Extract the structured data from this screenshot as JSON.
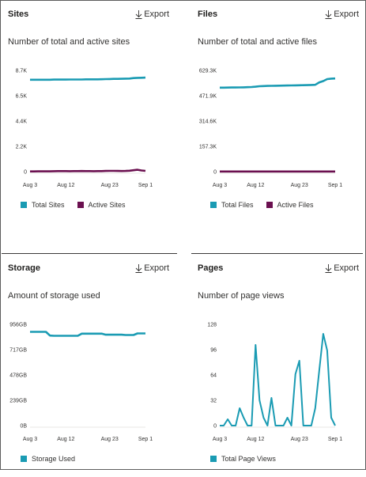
{
  "colors": {
    "total": "#1a9bb3",
    "active": "#6b1050",
    "text": "#323130"
  },
  "panels": [
    {
      "key": "sites",
      "title": "Sites",
      "export_label": "Export",
      "export_icon": "download-icon",
      "subtitle": "Number of total and active sites",
      "chart_data": {
        "type": "line",
        "y_ticks": [
          "8.7K",
          "6.5K",
          "4.4K",
          "2.2K",
          "0"
        ],
        "ylim": [
          0,
          8700
        ],
        "x_ticks": [
          "Aug 3",
          "Aug 12",
          "Aug 23",
          "Sep 1"
        ],
        "x_tick_days": [
          0,
          9,
          20,
          29
        ],
        "x_days": 30,
        "series": [
          {
            "name": "Total Sites",
            "values": [
              7900,
              7900,
              7900,
              7900,
              7900,
              7900,
              7910,
              7910,
              7910,
              7910,
              7920,
              7920,
              7920,
              7920,
              7930,
              7930,
              7930,
              7930,
              7940,
              7950,
              7960,
              7970,
              7970,
              7980,
              7990,
              8000,
              8040,
              8060,
              8070,
              8080
            ]
          },
          {
            "name": "Active Sites",
            "values": [
              20,
              20,
              25,
              30,
              35,
              30,
              40,
              45,
              50,
              45,
              40,
              45,
              50,
              55,
              50,
              45,
              40,
              45,
              50,
              60,
              70,
              65,
              60,
              55,
              60,
              80,
              120,
              160,
              100,
              70
            ]
          }
        ]
      }
    },
    {
      "key": "files",
      "title": "Files",
      "export_label": "Export",
      "export_icon": "download-icon",
      "subtitle": "Number of total and active files",
      "chart_data": {
        "type": "line",
        "y_ticks": [
          "629.3K",
          "471.9K",
          "314.6K",
          "157.3K",
          "0"
        ],
        "ylim": [
          0,
          629300
        ],
        "x_ticks": [
          "Aug 3",
          "Aug 12",
          "Aug 23",
          "Sep 1"
        ],
        "x_tick_days": [
          0,
          9,
          20,
          29
        ],
        "x_days": 30,
        "series": [
          {
            "name": "Total Files",
            "values": [
              522000,
              522000,
              522500,
              523000,
              523000,
              523500,
              524000,
              525000,
              526000,
              528000,
              531000,
              532000,
              533000,
              533500,
              534000,
              534500,
              535000,
              535500,
              536000,
              536500,
              537000,
              537500,
              538000,
              539000,
              540000,
              555000,
              563000,
              575000,
              578000,
              579000
            ]
          },
          {
            "name": "Active Files",
            "values": [
              800,
              800,
              900,
              1000,
              900,
              800,
              900,
              1000,
              1100,
              900,
              800,
              900,
              1000,
              900,
              800,
              900,
              1000,
              900,
              800,
              900,
              1000,
              900,
              800,
              900,
              1000,
              900,
              800,
              900,
              1000,
              900
            ]
          }
        ]
      }
    },
    {
      "key": "storage",
      "title": "Storage",
      "export_label": "Export",
      "export_icon": "download-icon",
      "subtitle": "Amount of storage used",
      "chart_data": {
        "type": "line",
        "y_ticks": [
          "956GB",
          "717GB",
          "478GB",
          "239GB",
          "0B"
        ],
        "ylim": [
          0,
          956
        ],
        "x_ticks": [
          "Aug 3",
          "Aug 12",
          "Aug 23",
          "Sep 1"
        ],
        "x_tick_days": [
          0,
          9,
          20,
          29
        ],
        "x_days": 30,
        "series": [
          {
            "name": "Storage Used",
            "values": [
              885,
              885,
              885,
              885,
              885,
              850,
              848,
              848,
              848,
              848,
              848,
              848,
              848,
              868,
              868,
              868,
              868,
              868,
              868,
              858,
              858,
              858,
              858,
              858,
              855,
              855,
              855,
              870,
              870,
              870
            ]
          }
        ]
      }
    },
    {
      "key": "pages",
      "title": "Pages",
      "export_label": "Export",
      "export_icon": "download-icon",
      "subtitle": "Number of page views",
      "chart_data": {
        "type": "line",
        "y_ticks": [
          "128",
          "96",
          "64",
          "32",
          "0"
        ],
        "ylim": [
          0,
          128
        ],
        "x_ticks": [
          "Aug 3",
          "Aug 12",
          "Aug 23",
          "Sep 1"
        ],
        "x_tick_days": [
          0,
          9,
          20,
          29
        ],
        "x_days": 30,
        "series": [
          {
            "name": "Total Page Views",
            "values": [
              0,
              0,
              8,
              0,
              0,
              22,
              10,
              0,
              0,
              102,
              32,
              10,
              0,
              35,
              0,
              0,
              0,
              10,
              0,
              65,
              82,
              0,
              0,
              0,
              22,
              70,
              116,
              95,
              10,
              0
            ]
          }
        ]
      }
    }
  ]
}
